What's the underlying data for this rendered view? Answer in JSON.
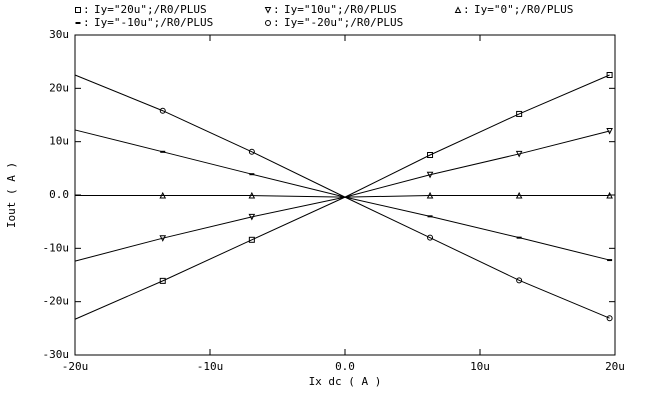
{
  "chart_data": {
    "type": "line",
    "x_label": "Ix dc ( A )",
    "y_label": "Iout ( A )",
    "legend_separator": ":",
    "x": [
      -20,
      -13.5,
      -6.9,
      0,
      6.3,
      12.9,
      19.6
    ],
    "series": [
      {
        "name": "Iy=\"20u\";/R0/PLUS",
        "marker": "square",
        "color": "#000000",
        "values": [
          -23.3,
          -16.1,
          -8.4,
          -0.4,
          7.5,
          15.2,
          22.5
        ]
      },
      {
        "name": "Iy=\"10u\";/R0/PLUS",
        "marker": "triangle-down",
        "color": "#000000",
        "values": [
          -12.4,
          -8.1,
          -4.1,
          -0.4,
          3.8,
          7.7,
          12
        ]
      },
      {
        "name": "Iy=\"0\";/R0/PLUS",
        "marker": "triangle-up",
        "color": "#000000",
        "values": [
          -0.1,
          -0.1,
          -0.1,
          -0.4,
          -0.1,
          -0.1,
          -0.1
        ]
      },
      {
        "name": "Iy=\"-10u\";/R0/PLUS",
        "marker": "dash",
        "color": "#000000",
        "values": [
          12.2,
          8.1,
          3.9,
          -0.4,
          -4,
          -8,
          -12.2
        ]
      },
      {
        "name": "Iy=\"-20u\";/R0/PLUS",
        "marker": "circle",
        "color": "#000000",
        "values": [
          22.5,
          15.8,
          8.1,
          -0.4,
          -8,
          -16,
          -23.1
        ]
      }
    ],
    "xlim": [
      -20,
      20
    ],
    "ylim": [
      -30,
      30
    ],
    "xticks": [
      {
        "value": -20,
        "label": "-20u"
      },
      {
        "value": -10,
        "label": "-10u"
      },
      {
        "value": 0,
        "label": "0.0"
      },
      {
        "value": 10,
        "label": "10u"
      },
      {
        "value": 20,
        "label": "20u"
      }
    ],
    "yticks": [
      {
        "value": -30,
        "label": "-30u"
      },
      {
        "value": -20,
        "label": "-20u"
      },
      {
        "value": -10,
        "label": "-10u"
      },
      {
        "value": 0,
        "label": "0.0"
      },
      {
        "value": 10,
        "label": "10u"
      },
      {
        "value": 20,
        "label": "20u"
      },
      {
        "value": 30,
        "label": "30u"
      }
    ],
    "grid": false
  }
}
